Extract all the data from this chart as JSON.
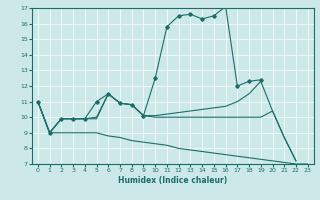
{
  "xlabel": "Humidex (Indice chaleur)",
  "xlim": [
    -0.5,
    23.5
  ],
  "ylim": [
    7,
    17
  ],
  "yticks": [
    7,
    8,
    9,
    10,
    11,
    12,
    13,
    14,
    15,
    16,
    17
  ],
  "xticks": [
    0,
    1,
    2,
    3,
    4,
    5,
    6,
    7,
    8,
    9,
    10,
    11,
    12,
    13,
    14,
    15,
    16,
    17,
    18,
    19,
    20,
    21,
    22,
    23
  ],
  "bg_color": "#cde8e8",
  "line_color": "#1a6e68",
  "line1_x": [
    0,
    1,
    2,
    3,
    4,
    5,
    6,
    7,
    8,
    9,
    10,
    11,
    12,
    13,
    14,
    15,
    16,
    17,
    18,
    19,
    20,
    21,
    22,
    23
  ],
  "line1_y": [
    11,
    9,
    9.0,
    9.0,
    9.0,
    9.0,
    8.8,
    8.7,
    8.5,
    8.4,
    8.3,
    8.2,
    8.0,
    7.9,
    7.8,
    7.7,
    7.6,
    7.5,
    7.4,
    7.3,
    7.2,
    7.1,
    7.0,
    7.0
  ],
  "line2_x": [
    0,
    1,
    2,
    3,
    4,
    5,
    6,
    7,
    8,
    9,
    10,
    11,
    12,
    13,
    14,
    15,
    16,
    17,
    18,
    19
  ],
  "line2_y": [
    11,
    9,
    9.9,
    9.9,
    9.9,
    11.0,
    11.5,
    10.9,
    10.8,
    10.1,
    12.5,
    15.8,
    16.5,
    16.6,
    16.3,
    16.5,
    17.1,
    12.0,
    12.3,
    12.4
  ],
  "line2_markers": true,
  "line3_x": [
    0,
    1,
    2,
    3,
    4,
    5,
    6,
    7,
    8,
    9,
    10,
    11,
    12,
    13,
    14,
    15,
    16,
    17,
    18,
    19,
    20,
    21,
    22
  ],
  "line3_y": [
    11,
    9,
    9.9,
    9.9,
    9.9,
    10.0,
    11.5,
    10.9,
    10.8,
    10.1,
    10.1,
    10.2,
    10.3,
    10.4,
    10.5,
    10.6,
    10.7,
    11.0,
    11.5,
    12.3,
    10.4,
    8.7,
    7.2
  ],
  "line4_x": [
    0,
    1,
    2,
    3,
    4,
    5,
    6,
    7,
    8,
    9,
    10,
    11,
    12,
    13,
    14,
    15,
    16,
    17,
    18,
    19,
    20,
    21,
    22
  ],
  "line4_y": [
    11,
    9,
    9.9,
    9.9,
    9.9,
    9.9,
    11.5,
    10.9,
    10.8,
    10.1,
    10.0,
    10.0,
    10.0,
    10.0,
    10.0,
    10.0,
    10.0,
    10.0,
    10.0,
    10.0,
    10.4,
    8.7,
    7.2
  ]
}
